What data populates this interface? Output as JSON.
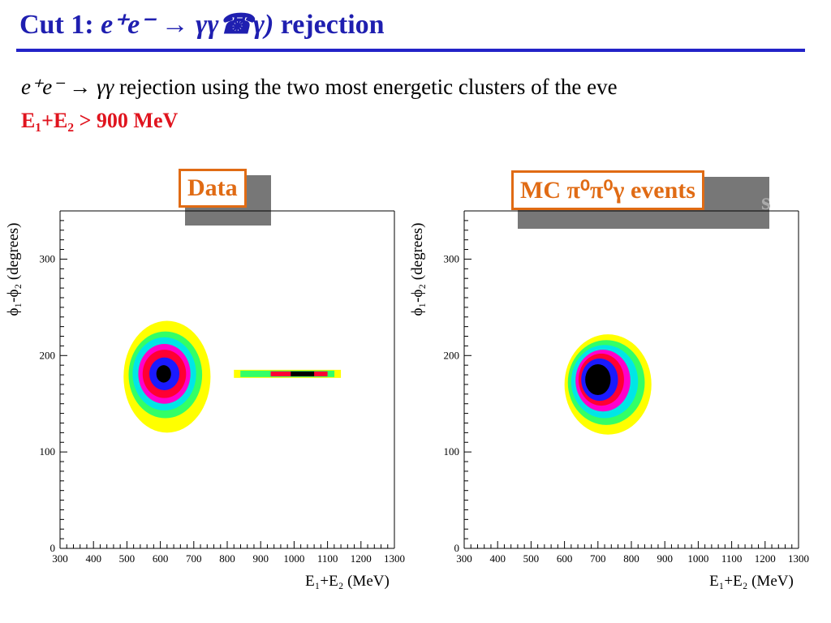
{
  "slide": {
    "title_prefix": "Cut 1: ",
    "title_reaction": "e⁺e⁻ → γγ☎γ)",
    "title_suffix": " rejection",
    "line1_reaction": "e⁺e⁻ →  γγ",
    "line1_text": " rejection using the two most energetic clusters of the eve",
    "cut_text": "E₁+E₂ > 900 MeV",
    "label_data": "Data",
    "label_mc": "MC π⁰π⁰γ events",
    "label_mc_behind": "s"
  },
  "colors": {
    "title": "#1f1fb0",
    "cut": "#e0141e",
    "label": "#e06b14",
    "levels": [
      "#ffff00",
      "#33ff66",
      "#00e6e6",
      "#ff00cc",
      "#ff0033",
      "#1a1aff",
      "#000000"
    ]
  },
  "chart_data": [
    {
      "type": "heatmap",
      "name": "Data",
      "xlabel": "E₁+E₂ (MeV)",
      "ylabel": "ϕ₁-ϕ₂ (degrees)",
      "xlim": [
        300,
        1300
      ],
      "ylim": [
        0,
        350
      ],
      "x_ticks": [
        300,
        400,
        500,
        600,
        700,
        800,
        900,
        1000,
        1100,
        1200,
        1300
      ],
      "y_ticks": [
        0,
        100,
        200,
        300
      ],
      "blobs": [
        {
          "level": 0,
          "cx": 620,
          "cy": 178,
          "rx": 130,
          "ry": 58
        },
        {
          "level": 1,
          "cx": 615,
          "cy": 180,
          "rx": 110,
          "ry": 45
        },
        {
          "level": 2,
          "cx": 612,
          "cy": 181,
          "rx": 95,
          "ry": 38
        },
        {
          "level": 3,
          "cx": 612,
          "cy": 181,
          "rx": 78,
          "ry": 31
        },
        {
          "level": 4,
          "cx": 612,
          "cy": 181,
          "rx": 65,
          "ry": 25
        },
        {
          "level": 5,
          "cx": 612,
          "cy": 181,
          "rx": 45,
          "ry": 17
        },
        {
          "level": 6,
          "cx": 610,
          "cy": 181,
          "rx": 22,
          "ry": 9
        }
      ],
      "band": {
        "x_from": 820,
        "x_to": 1140,
        "y": 181,
        "height": 5
      }
    },
    {
      "type": "heatmap",
      "name": "MC π⁰π⁰γ events",
      "xlabel": "E₁+E₂ (MeV)",
      "ylabel": "ϕ₁-ϕ₂ (degrees)",
      "xlim": [
        300,
        1300
      ],
      "ylim": [
        0,
        350
      ],
      "x_ticks": [
        300,
        400,
        500,
        600,
        700,
        800,
        900,
        1000,
        1100,
        1200,
        1300
      ],
      "y_ticks": [
        0,
        100,
        200,
        300
      ],
      "blobs": [
        {
          "level": 0,
          "cx": 730,
          "cy": 170,
          "rx": 130,
          "ry": 52
        },
        {
          "level": 1,
          "cx": 725,
          "cy": 172,
          "rx": 115,
          "ry": 44
        },
        {
          "level": 2,
          "cx": 720,
          "cy": 173,
          "rx": 100,
          "ry": 38
        },
        {
          "level": 3,
          "cx": 715,
          "cy": 174,
          "rx": 82,
          "ry": 32
        },
        {
          "level": 4,
          "cx": 710,
          "cy": 175,
          "rx": 68,
          "ry": 27
        },
        {
          "level": 5,
          "cx": 705,
          "cy": 175,
          "rx": 55,
          "ry": 22
        },
        {
          "level": 6,
          "cx": 700,
          "cy": 175,
          "rx": 38,
          "ry": 16
        }
      ]
    }
  ]
}
